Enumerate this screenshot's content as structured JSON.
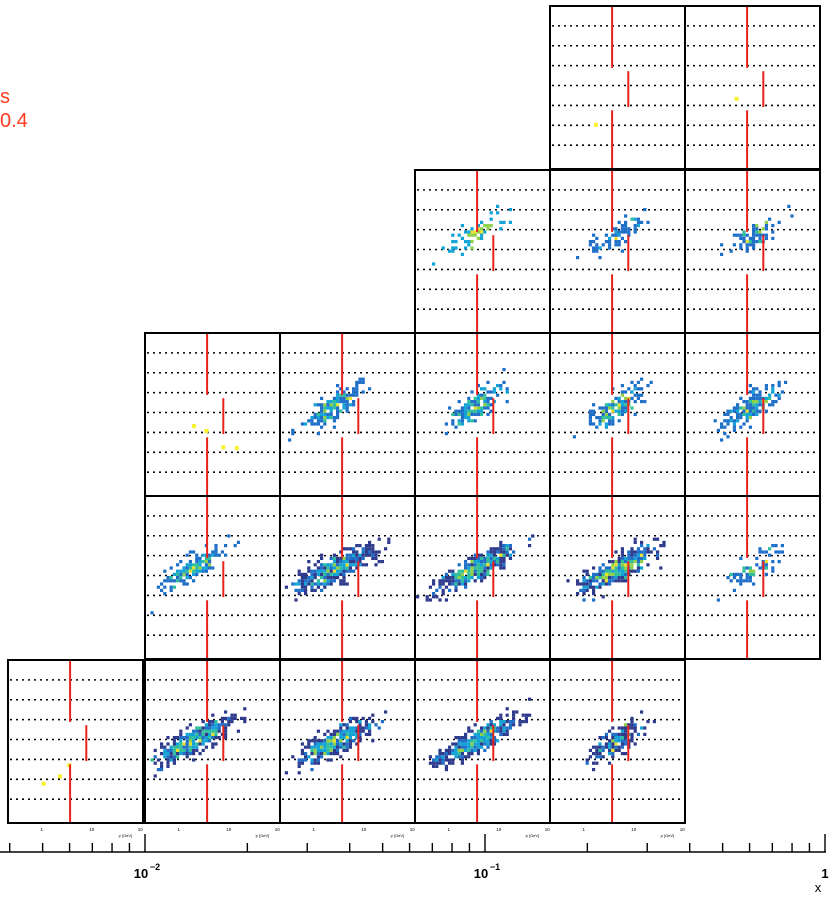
{
  "legend": {
    "line1": "s",
    "line2": "0.4"
  },
  "colors": {
    "frame": "#000000",
    "cut_line": "#e8211a",
    "legend_text": "#ff3b1f",
    "grid": "#000000",
    "palette": [
      "#2e3a8c",
      "#1f6fc9",
      "#12a3d6",
      "#2fbf9a",
      "#8ed04a",
      "#e8e030",
      "#f7f22a"
    ]
  },
  "chart_data": {
    "type": "heatmap",
    "title": "",
    "x_axis": {
      "label": "x",
      "scale": "log",
      "range": [
        0.002,
        1
      ],
      "major_tick_labels": [
        "10",
        "10",
        "1"
      ],
      "major_tick_exponents": [
        "−2",
        "−1",
        ""
      ],
      "major_tick_values": [
        0.01,
        0.1,
        1
      ]
    },
    "panel_axis_title": "p [GeV]",
    "panel_tick_labels": [
      "1",
      "10",
      "10"
    ],
    "grid": "horizontal-dotted",
    "panels": [
      {
        "row": 0,
        "col": 4,
        "entries": "sparse",
        "hot_spots": 1
      },
      {
        "row": 0,
        "col": 5,
        "entries": "sparse",
        "hot_spots": 1
      },
      {
        "row": 1,
        "col": 3,
        "entries": "few"
      },
      {
        "row": 1,
        "col": 4,
        "entries": "few"
      },
      {
        "row": 1,
        "col": 5,
        "entries": "few"
      },
      {
        "row": 2,
        "col": 1,
        "entries": "sparse",
        "hot_spots": 4
      },
      {
        "row": 2,
        "col": 2,
        "entries": "moderate"
      },
      {
        "row": 2,
        "col": 3,
        "entries": "moderate"
      },
      {
        "row": 2,
        "col": 4,
        "entries": "moderate"
      },
      {
        "row": 2,
        "col": 5,
        "entries": "moderate"
      },
      {
        "row": 3,
        "col": 1,
        "entries": "moderate"
      },
      {
        "row": 3,
        "col": 2,
        "entries": "many"
      },
      {
        "row": 3,
        "col": 3,
        "entries": "many"
      },
      {
        "row": 3,
        "col": 4,
        "entries": "many"
      },
      {
        "row": 3,
        "col": 5,
        "entries": "few"
      },
      {
        "row": 4,
        "col": 0,
        "entries": "sparse",
        "hot_spots": 3
      },
      {
        "row": 4,
        "col": 1,
        "entries": "many"
      },
      {
        "row": 4,
        "col": 2,
        "entries": "many"
      },
      {
        "row": 4,
        "col": 3,
        "entries": "many"
      },
      {
        "row": 4,
        "col": 4,
        "entries": "moderate"
      }
    ]
  }
}
